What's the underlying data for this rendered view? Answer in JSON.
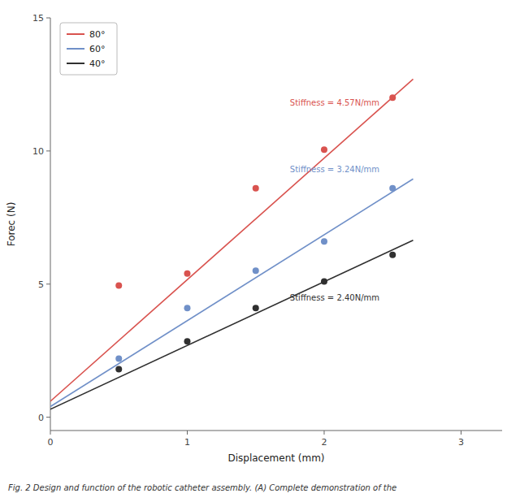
{
  "chart_data": {
    "type": "scatter",
    "x_label": "Displacement (mm)",
    "y_label": "Forec (N)",
    "caption": "Fig. 2 Design and function of the robotic catheter assembly. (A) Complete demonstration of the",
    "xlim": [
      0,
      3.3
    ],
    "ylim": [
      -0.5,
      15
    ],
    "xticks": [
      0,
      1,
      2,
      3
    ],
    "yticks": [
      0,
      5,
      10,
      15
    ],
    "grid": false,
    "legend": "upper-left",
    "series": [
      {
        "name": "80°",
        "color": "#d9534f",
        "x": [
          0.5,
          1.0,
          1.5,
          2.0,
          2.5
        ],
        "values": [
          4.95,
          5.4,
          8.6,
          10.05,
          12.0
        ],
        "fit_x": [
          0.0,
          2.65
        ],
        "fit_values": [
          0.6,
          12.7
        ]
      },
      {
        "name": "60°",
        "color": "#7090c8",
        "x": [
          0.5,
          1.0,
          1.5,
          2.0,
          2.5
        ],
        "values": [
          2.2,
          4.1,
          5.5,
          6.6,
          8.6
        ],
        "fit_x": [
          0.0,
          2.65
        ],
        "fit_values": [
          0.4,
          8.95
        ]
      },
      {
        "name": "40°",
        "color": "#303030",
        "x": [
          0.5,
          1.0,
          1.5,
          2.0,
          2.5
        ],
        "values": [
          1.8,
          2.85,
          4.1,
          5.1,
          6.1
        ],
        "fit_x": [
          0.0,
          2.65
        ],
        "fit_values": [
          0.3,
          6.65
        ]
      }
    ],
    "annotations": [
      {
        "text": "Stiffness = 4.57N/mm",
        "x": 1.75,
        "y": 11.8,
        "color": "#d9534f"
      },
      {
        "text": "Stiffness = 3.24N/mm",
        "x": 1.75,
        "y": 9.3,
        "color": "#7090c8"
      },
      {
        "text": "Stiffness = 2.40N/mm",
        "x": 1.75,
        "y": 4.5,
        "color": "#303030"
      }
    ]
  }
}
